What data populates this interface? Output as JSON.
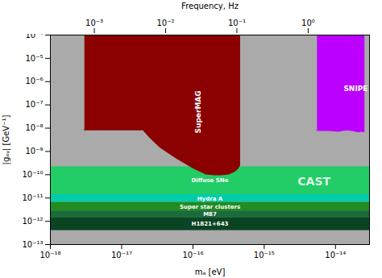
{
  "chart_data": {
    "type": "exclusion",
    "log": true,
    "xlabel": "mₐ [eV]",
    "ylabel": "|gₐᵧ| [GeV⁻¹]",
    "x2label": "Frequency, Hz",
    "xlim": [
      1e-18,
      3e-14
    ],
    "ylim": [
      1e-13,
      0.0001
    ],
    "x2lim": [
      0.0002418,
      7.254
    ],
    "xticks": [
      {
        "value": 1e-18,
        "label": "10⁻¹⁸"
      },
      {
        "value": 1e-17,
        "label": "10⁻¹⁷"
      },
      {
        "value": 1e-16,
        "label": "10⁻¹⁶"
      },
      {
        "value": 1e-15,
        "label": "10⁻¹⁵"
      },
      {
        "value": 1e-14,
        "label": "10⁻¹⁴"
      }
    ],
    "yticks": [
      {
        "value": 1e-13,
        "label": "10⁻¹³"
      },
      {
        "value": 1e-12,
        "label": "10⁻¹²"
      },
      {
        "value": 1e-11,
        "label": "10⁻¹¹"
      },
      {
        "value": 1e-10,
        "label": "10⁻¹⁰"
      },
      {
        "value": 1e-09,
        "label": "10⁻⁹"
      },
      {
        "value": 1e-08,
        "label": "10⁻⁸"
      },
      {
        "value": 1e-07,
        "label": "10⁻⁷"
      },
      {
        "value": 1e-06,
        "label": "10⁻⁶"
      },
      {
        "value": 1e-05,
        "label": "10⁻⁵"
      },
      {
        "value": 0.0001,
        "label": "10⁻⁴"
      }
    ],
    "x2ticks": [
      {
        "value": 0.001,
        "label": "10⁻³"
      },
      {
        "value": 0.01,
        "label": "10⁻²"
      },
      {
        "value": 0.1,
        "label": "10⁻¹"
      },
      {
        "value": 1,
        "label": "10⁰"
      }
    ],
    "background": {
      "name": "CAST",
      "color": "#aaaaaa",
      "label_x": 5e-15,
      "label_y": 5e-11
    },
    "bands": [
      {
        "label": "Diffuse SNe",
        "ymin": 1.4e-11,
        "ymax": 2.2e-10,
        "color": "#22cc66"
      },
      {
        "label": "Hydra A",
        "ymin": 6.5e-12,
        "ymax": 1.4e-11,
        "color": "#00ccaa"
      },
      {
        "label": "Super star clusters",
        "ymin": 2.8e-12,
        "ymax": 6.5e-12,
        "color": "#228b22"
      },
      {
        "label": "M87",
        "ymin": 1.4e-12,
        "ymax": 2.8e-12,
        "color": "#1a6b3a"
      },
      {
        "label": "H1821+643",
        "ymin": 4e-13,
        "ymax": 1.4e-12,
        "color": "#0a4422"
      }
    ],
    "regions": [
      {
        "name": "SuperMAG",
        "color": "#8b0000",
        "x": [
          3e-18,
          4.5e-16,
          4.5e-16,
          4.2e-16,
          3.8e-16,
          3.2e-16,
          2.5e-16,
          2e-16,
          1.5e-16,
          1e-16,
          6e-17,
          3.5e-17,
          2.5e-17,
          2e-17,
          2e-17,
          3e-18
        ],
        "y": [
          0.0001,
          0.0001,
          2.5e-10,
          1.8e-10,
          1.4e-10,
          1.1e-10,
          1e-10,
          1e-10,
          1.1e-10,
          2e-10,
          5e-10,
          1.5e-09,
          4e-09,
          8.5e-09,
          8.5e-09,
          8.5e-09
        ],
        "label_x": 1.2e-16,
        "label_y": 5e-08
      },
      {
        "name": "SNIPE Hunt",
        "color": "#bb00ff",
        "x": [
          5.5e-15,
          2.5e-14,
          2.5e-14,
          2.35e-14,
          2.1e-14,
          1.9e-14,
          1.7e-14,
          1.4e-14,
          1.1e-14,
          8e-15,
          5.5e-15
        ],
        "y": [
          0.0001,
          0.0001,
          7e-09,
          7.5e-09,
          7e-09,
          7.5e-09,
          8e-09,
          8.5e-09,
          7.5e-09,
          8e-09,
          8e-09
        ],
        "label_x": 1.3e-14,
        "label_y": 5e-07
      }
    ]
  }
}
